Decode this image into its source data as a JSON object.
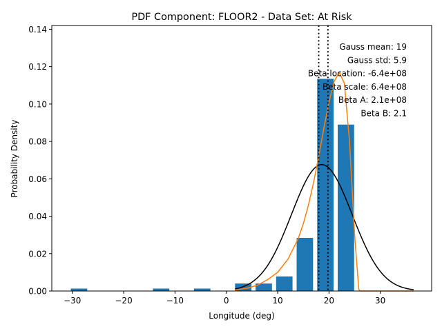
{
  "chart_data": {
    "type": "bar",
    "title": "PDF Component: FLOOR2 - Data Set: At Risk",
    "xlabel": "Longitude (deg)",
    "ylabel": "Probability Density",
    "xlim": [
      -34,
      40
    ],
    "ylim": [
      0,
      0.142
    ],
    "xticks": [
      -30,
      -20,
      -10,
      0,
      10,
      20,
      30
    ],
    "yticks": [
      0.0,
      0.02,
      0.04,
      0.06,
      0.08,
      0.1,
      0.12,
      0.14
    ],
    "xtick_labels": [
      "−30",
      "−20",
      "−10",
      "0",
      "10",
      "20",
      "30"
    ],
    "ytick_labels": [
      "0.00",
      "0.02",
      "0.04",
      "0.06",
      "0.08",
      "0.10",
      "0.12",
      "0.14"
    ],
    "bar_width": 3.2,
    "bars": [
      {
        "x": -28.7,
        "value": 0.0013
      },
      {
        "x": -12.7,
        "value": 0.0013
      },
      {
        "x": -4.7,
        "value": 0.0013
      },
      {
        "x": 3.3,
        "value": 0.004
      },
      {
        "x": 7.3,
        "value": 0.004
      },
      {
        "x": 11.3,
        "value": 0.0078
      },
      {
        "x": 15.3,
        "value": 0.0284
      },
      {
        "x": 19.3,
        "value": 0.1135
      },
      {
        "x": 23.3,
        "value": 0.089
      }
    ],
    "bar_color": "#1f77b4",
    "gauss_curve": {
      "mean": 18.6,
      "std": 5.9,
      "x_range": [
        1.7,
        36.5
      ],
      "color": "#000000"
    },
    "beta_curve": {
      "color": "#ff7f0e",
      "x": [
        1.7,
        4,
        6,
        8,
        10,
        12,
        14,
        15,
        16,
        17,
        18,
        19,
        20,
        21,
        22,
        23,
        24,
        25,
        25.8,
        26,
        30,
        36.5
      ],
      "y": [
        0.0005,
        0.0015,
        0.003,
        0.006,
        0.01,
        0.017,
        0.028,
        0.036,
        0.046,
        0.058,
        0.072,
        0.087,
        0.101,
        0.112,
        0.117,
        0.111,
        0.08,
        0.03,
        0.001,
        0.0,
        0.0,
        0.0
      ]
    },
    "vlines": [
      18.0,
      19.8
    ],
    "vline_style": "dotted",
    "annotations": [
      "Gauss mean: 19",
      "Gauss std: 5.9",
      "Beta location: -6.4e+08",
      "Beta scale: 6.4e+08",
      "Beta A: 2.1e+08",
      "Beta B: 2.1"
    ],
    "grid": false
  }
}
